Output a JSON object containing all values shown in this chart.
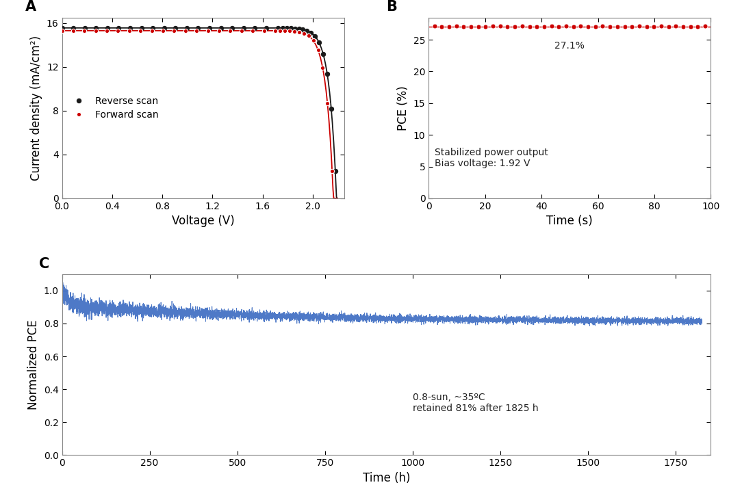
{
  "panel_A": {
    "label": "A",
    "xlabel": "Voltage (V)",
    "ylabel": "Current density (mA/cm²)",
    "xlim": [
      0.0,
      2.25
    ],
    "ylim": [
      0,
      16.5
    ],
    "yticks": [
      0,
      4,
      8,
      12,
      16
    ],
    "xticks": [
      0.0,
      0.4,
      0.8,
      1.2,
      1.6,
      2.0
    ],
    "reverse_color": "#1a1a1a",
    "forward_color": "#cc0000",
    "legend_labels": [
      "Reverse scan",
      "Forward scan"
    ],
    "Jsc_reverse": 15.55,
    "Jsc_forward": 15.3,
    "Voc_reverse": 2.19,
    "Voc_forward": 2.165,
    "n_diode": 2.2,
    "n_points_sparse": 35,
    "n_points_knee": 18
  },
  "panel_B": {
    "label": "B",
    "xlabel": "Time (s)",
    "ylabel": "PCE (%)",
    "xlim": [
      0,
      100
    ],
    "ylim": [
      0,
      28.5
    ],
    "yticks": [
      0,
      5,
      10,
      15,
      20,
      25
    ],
    "xticks": [
      0,
      20,
      40,
      60,
      80,
      100
    ],
    "pce_value": 27.1,
    "pce_label": "27.1%",
    "annotation1": "Stabilized power output",
    "annotation2": "Bias voltage: 1.92 V",
    "color": "#cc0000",
    "n_points": 38
  },
  "panel_C": {
    "label": "C",
    "xlabel": "Time (h)",
    "ylabel": "Normalized PCE",
    "xlim": [
      0,
      1850
    ],
    "ylim": [
      0.0,
      1.1
    ],
    "yticks": [
      0.0,
      0.2,
      0.4,
      0.6,
      0.8,
      1.0
    ],
    "xticks": [
      0,
      250,
      500,
      750,
      1000,
      1250,
      1500,
      1750
    ],
    "color": "#4472c4",
    "annotation1": "0.8-sun, ~35ºC",
    "annotation2": "retained 81% after 1825 h"
  },
  "figure": {
    "bg_color": "#ffffff",
    "spine_color": "#888888",
    "label_fontsize": 12,
    "tick_fontsize": 10,
    "panel_label_fontsize": 15
  }
}
